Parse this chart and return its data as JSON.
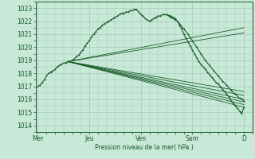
{
  "bg_color": "#c8e8d8",
  "grid_color": "#a0ccbb",
  "line_color": "#1a5c28",
  "ylabel_text": "Pression niveau de la mer( hPa )",
  "ylim": [
    1013.5,
    1023.5
  ],
  "yticks": [
    1014,
    1015,
    1016,
    1017,
    1018,
    1019,
    1020,
    1021,
    1022,
    1023
  ],
  "xtick_labels": [
    "Mer",
    "Jeu",
    "Ven",
    "Sam",
    "D"
  ],
  "xtick_positions": [
    0,
    48,
    96,
    144,
    192
  ],
  "xlim": [
    -2,
    200
  ],
  "figsize": [
    3.2,
    2.0
  ],
  "dpi": 100,
  "main_curve_x": [
    0,
    2,
    4,
    6,
    8,
    10,
    12,
    14,
    16,
    18,
    20,
    22,
    24,
    26,
    28,
    30,
    32,
    34,
    36,
    38,
    40,
    42,
    44,
    46,
    48,
    50,
    52,
    54,
    56,
    58,
    60,
    62,
    64,
    66,
    68,
    70,
    72,
    74,
    76,
    78,
    80,
    82,
    84,
    86,
    88,
    90,
    92,
    94,
    96,
    98,
    100,
    102,
    104,
    106,
    108,
    110,
    112,
    114,
    116,
    118,
    120,
    122,
    124,
    126,
    128,
    130,
    132,
    134,
    136,
    138,
    140,
    142,
    144,
    146,
    148,
    150,
    152,
    154,
    156,
    158,
    160,
    162,
    164,
    166,
    168,
    170,
    172,
    174,
    176,
    178,
    180,
    182,
    184,
    186,
    188,
    190,
    192
  ],
  "main_curve_y": [
    1017.0,
    1017.1,
    1017.3,
    1017.5,
    1017.8,
    1018.0,
    1018.1,
    1018.2,
    1018.3,
    1018.5,
    1018.6,
    1018.7,
    1018.8,
    1018.8,
    1018.9,
    1018.9,
    1019.0,
    1019.1,
    1019.3,
    1019.4,
    1019.6,
    1019.8,
    1020.1,
    1020.3,
    1020.5,
    1020.8,
    1021.0,
    1021.2,
    1021.4,
    1021.5,
    1021.7,
    1021.8,
    1021.9,
    1022.0,
    1022.1,
    1022.2,
    1022.3,
    1022.4,
    1022.5,
    1022.6,
    1022.6,
    1022.7,
    1022.7,
    1022.8,
    1022.8,
    1022.9,
    1022.9,
    1022.7,
    1022.5,
    1022.4,
    1022.2,
    1022.1,
    1022.0,
    1022.1,
    1022.2,
    1022.3,
    1022.4,
    1022.4,
    1022.5,
    1022.5,
    1022.5,
    1022.4,
    1022.3,
    1022.2,
    1022.1,
    1022.0,
    1021.7,
    1021.4,
    1021.0,
    1020.7,
    1020.4,
    1020.1,
    1019.8,
    1019.5,
    1019.2,
    1018.9,
    1018.7,
    1018.5,
    1018.3,
    1018.1,
    1017.9,
    1017.7,
    1017.5,
    1017.3,
    1017.2,
    1017.0,
    1016.8,
    1016.6,
    1016.4,
    1016.2,
    1015.9,
    1015.7,
    1015.5,
    1015.3,
    1015.1,
    1014.9,
    1015.4
  ],
  "forecast_lines": [
    {
      "x": [
        28,
        192
      ],
      "y": [
        1018.9,
        1015.4
      ]
    },
    {
      "x": [
        28,
        192
      ],
      "y": [
        1018.9,
        1015.6
      ]
    },
    {
      "x": [
        28,
        192
      ],
      "y": [
        1018.9,
        1015.8
      ]
    },
    {
      "x": [
        28,
        192
      ],
      "y": [
        1018.9,
        1016.0
      ]
    },
    {
      "x": [
        28,
        192
      ],
      "y": [
        1018.9,
        1016.3
      ]
    },
    {
      "x": [
        28,
        192
      ],
      "y": [
        1018.9,
        1016.6
      ]
    },
    {
      "x": [
        28,
        192
      ],
      "y": [
        1018.9,
        1021.1
      ]
    },
    {
      "x": [
        28,
        192
      ],
      "y": [
        1018.9,
        1021.5
      ]
    }
  ],
  "extra_curve1_x": [
    120,
    124,
    128,
    132,
    136,
    140,
    144,
    148,
    152,
    156,
    160,
    164,
    168,
    172,
    176,
    180,
    184,
    188,
    192
  ],
  "extra_curve1_y": [
    1022.5,
    1022.4,
    1022.2,
    1021.8,
    1021.4,
    1021.0,
    1020.5,
    1020.0,
    1019.5,
    1019.0,
    1018.6,
    1018.2,
    1017.8,
    1017.4,
    1017.1,
    1016.7,
    1016.4,
    1016.1,
    1015.9
  ]
}
